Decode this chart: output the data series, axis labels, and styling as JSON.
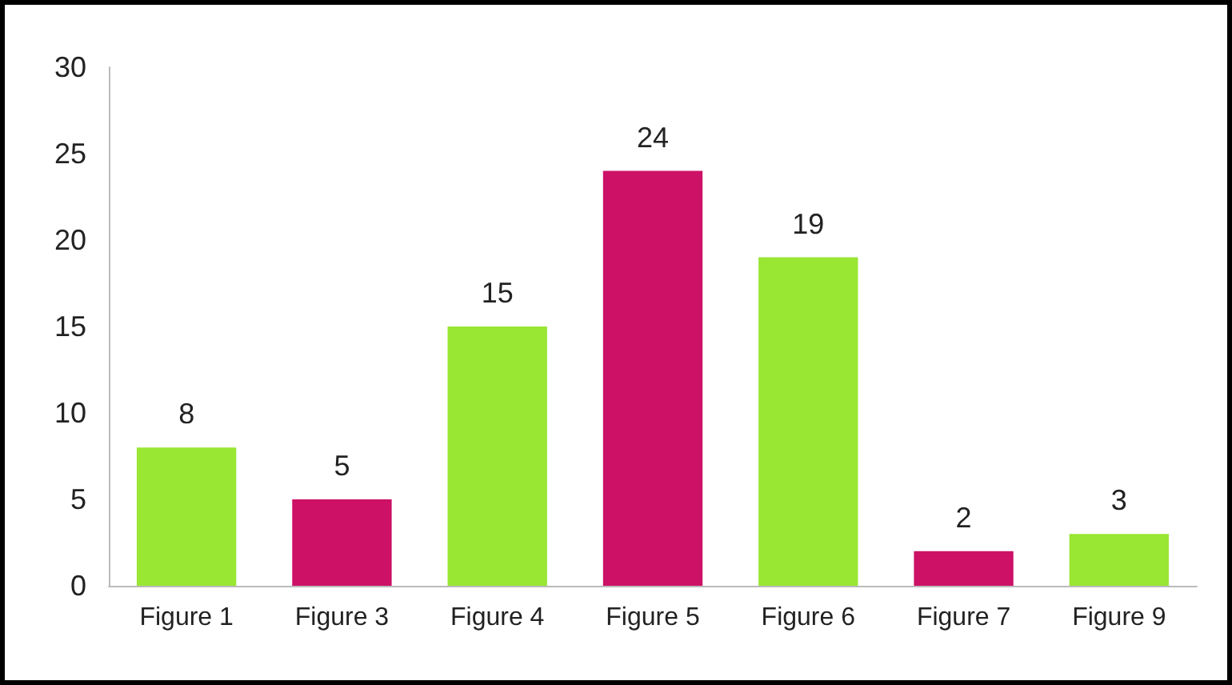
{
  "chart_data": {
    "type": "bar",
    "categories": [
      "Figure 1",
      "Figure 3",
      "Figure 4",
      "Figure 5",
      "Figure 6",
      "Figure 7",
      "Figure 9"
    ],
    "values": [
      8,
      5,
      15,
      24,
      19,
      2,
      3
    ],
    "colors": [
      "#99e633",
      "#cc1166",
      "#99e633",
      "#cc1166",
      "#99e633",
      "#cc1166",
      "#99e633"
    ],
    "ylim": [
      0,
      30
    ],
    "yticks": [
      0,
      5,
      10,
      15,
      20,
      25,
      30
    ],
    "grid": false,
    "data_labels": true
  }
}
